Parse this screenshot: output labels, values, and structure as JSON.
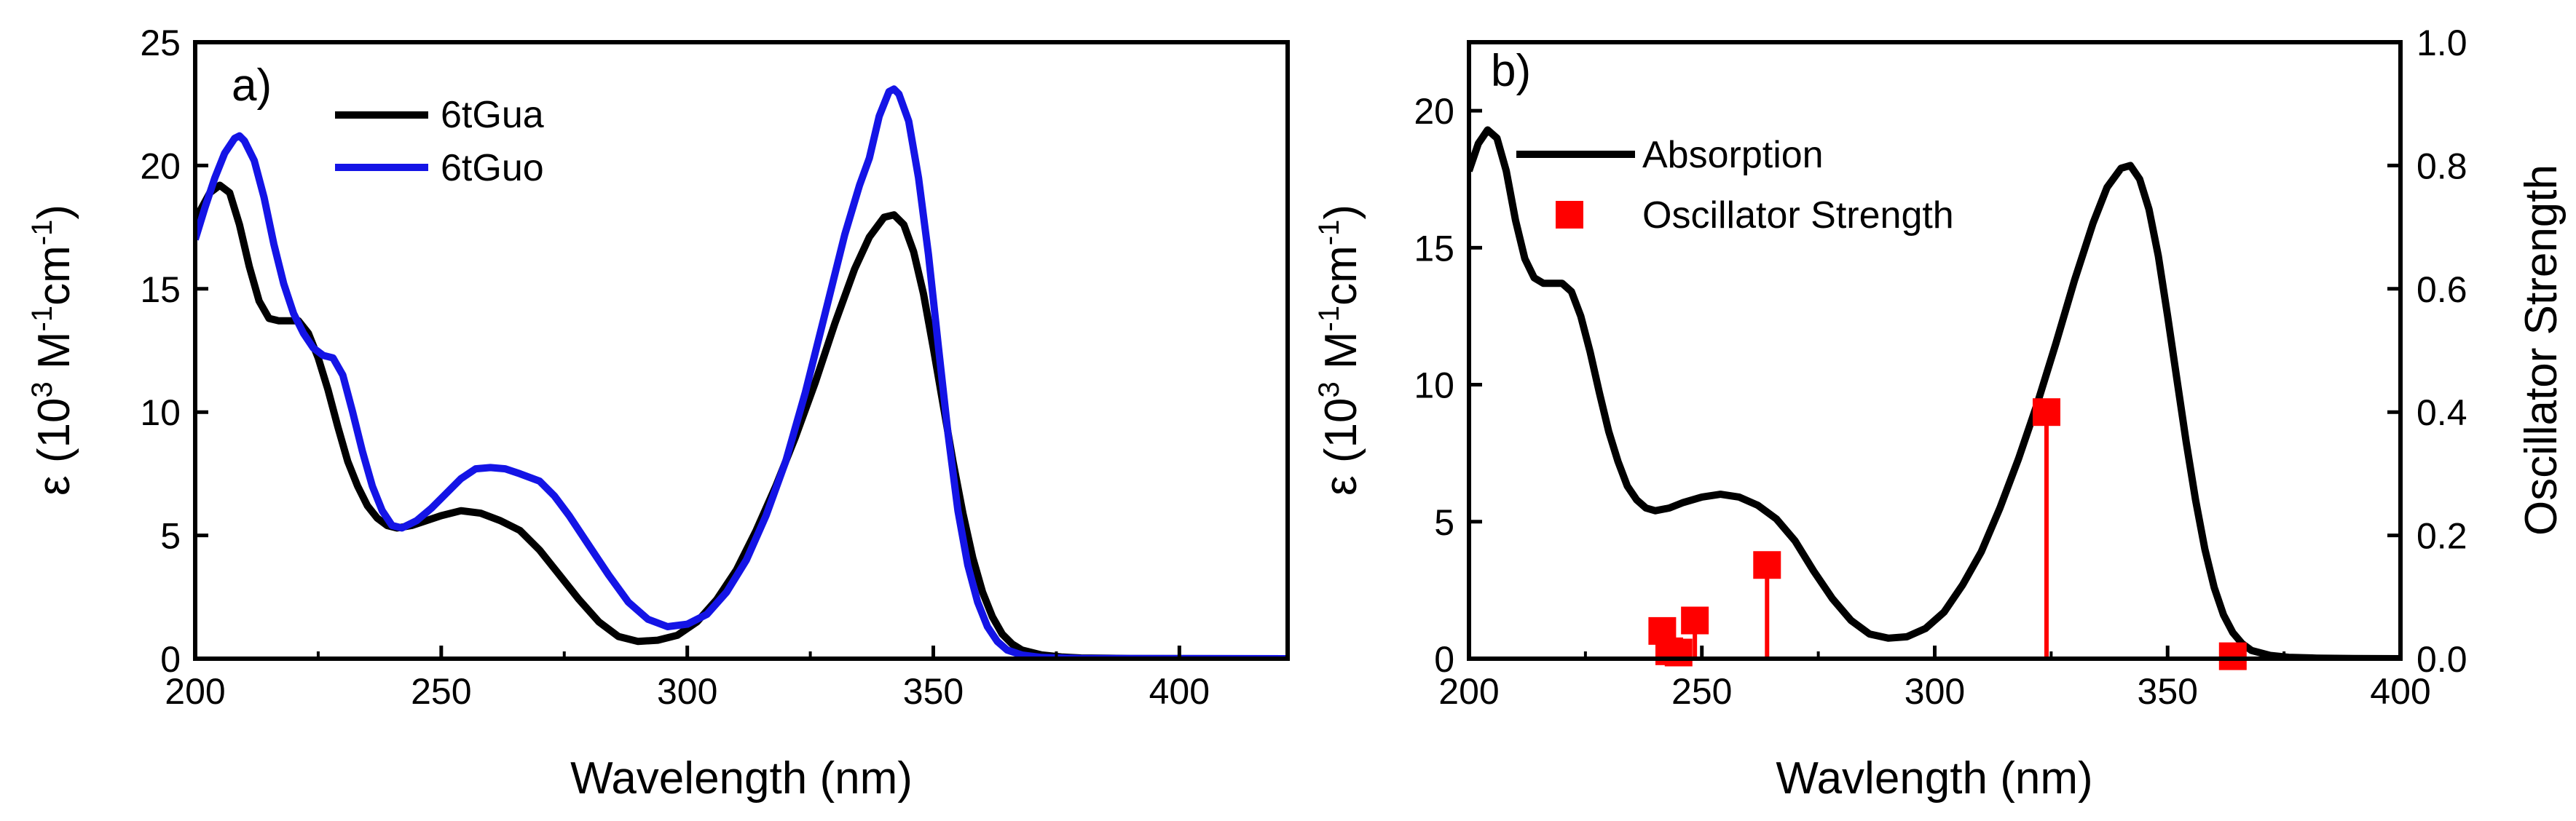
{
  "chart_data": [
    {
      "panel_label": "a)",
      "type": "line",
      "xlabel": "Wavelength (nm)",
      "ylabel": {
        "prefix": "ε (10",
        "exp1": "3",
        "mid1": " M",
        "exp2": "-1",
        "mid2": "cm",
        "exp3": "-1",
        "suffix": ")"
      },
      "xlim": [
        200,
        422
      ],
      "ylim": [
        0,
        25
      ],
      "x_ticks": [
        200,
        250,
        300,
        350,
        400
      ],
      "y_ticks": [
        0,
        5,
        10,
        15,
        20,
        25
      ],
      "series": [
        {
          "name": "6tGua",
          "color": "#000000",
          "points": [
            [
              200,
              17.8
            ],
            [
              203,
              18.9
            ],
            [
              205,
              19.2
            ],
            [
              207,
              18.9
            ],
            [
              209,
              17.6
            ],
            [
              211,
              15.9
            ],
            [
              213,
              14.5
            ],
            [
              215,
              13.8
            ],
            [
              217,
              13.7
            ],
            [
              219,
              13.7
            ],
            [
              221,
              13.7
            ],
            [
              223,
              13.2
            ],
            [
              225,
              12.2
            ],
            [
              227,
              10.9
            ],
            [
              229,
              9.4
            ],
            [
              231,
              8.0
            ],
            [
              233,
              7.0
            ],
            [
              235,
              6.2
            ],
            [
              237,
              5.7
            ],
            [
              239,
              5.4
            ],
            [
              241,
              5.3
            ],
            [
              244,
              5.4
            ],
            [
              247,
              5.6
            ],
            [
              250,
              5.8
            ],
            [
              254,
              6.0
            ],
            [
              258,
              5.9
            ],
            [
              262,
              5.6
            ],
            [
              266,
              5.2
            ],
            [
              270,
              4.4
            ],
            [
              274,
              3.4
            ],
            [
              278,
              2.4
            ],
            [
              282,
              1.5
            ],
            [
              286,
              0.9
            ],
            [
              290,
              0.7
            ],
            [
              294,
              0.75
            ],
            [
              298,
              0.95
            ],
            [
              302,
              1.5
            ],
            [
              306,
              2.4
            ],
            [
              310,
              3.6
            ],
            [
              314,
              5.2
            ],
            [
              318,
              7.0
            ],
            [
              322,
              9.0
            ],
            [
              326,
              11.2
            ],
            [
              330,
              13.6
            ],
            [
              334,
              15.8
            ],
            [
              337,
              17.1
            ],
            [
              340,
              17.9
            ],
            [
              342,
              18.0
            ],
            [
              344,
              17.6
            ],
            [
              346,
              16.5
            ],
            [
              348,
              14.8
            ],
            [
              350,
              12.6
            ],
            [
              352,
              10.3
            ],
            [
              354,
              8.0
            ],
            [
              356,
              5.9
            ],
            [
              358,
              4.1
            ],
            [
              360,
              2.7
            ],
            [
              362,
              1.7
            ],
            [
              364,
              1.0
            ],
            [
              366,
              0.6
            ],
            [
              368,
              0.35
            ],
            [
              372,
              0.15
            ],
            [
              376,
              0.07
            ],
            [
              380,
              0.03
            ],
            [
              390,
              0.01
            ],
            [
              422,
              0.0
            ]
          ]
        },
        {
          "name": "6tGuo",
          "color": "#1414e6",
          "points": [
            [
              200,
              17.0
            ],
            [
              202,
              18.3
            ],
            [
              204,
              19.5
            ],
            [
              206,
              20.5
            ],
            [
              208,
              21.1
            ],
            [
              209,
              21.2
            ],
            [
              210,
              21.0
            ],
            [
              212,
              20.2
            ],
            [
              214,
              18.7
            ],
            [
              216,
              16.8
            ],
            [
              218,
              15.2
            ],
            [
              220,
              14.0
            ],
            [
              222,
              13.2
            ],
            [
              224,
              12.6
            ],
            [
              226,
              12.3
            ],
            [
              228,
              12.2
            ],
            [
              230,
              11.5
            ],
            [
              232,
              10.0
            ],
            [
              234,
              8.4
            ],
            [
              236,
              7.0
            ],
            [
              238,
              6.0
            ],
            [
              240,
              5.4
            ],
            [
              242,
              5.3
            ],
            [
              245,
              5.6
            ],
            [
              248,
              6.1
            ],
            [
              251,
              6.7
            ],
            [
              254,
              7.3
            ],
            [
              257,
              7.7
            ],
            [
              260,
              7.75
            ],
            [
              263,
              7.7
            ],
            [
              266,
              7.5
            ],
            [
              270,
              7.2
            ],
            [
              273,
              6.6
            ],
            [
              276,
              5.8
            ],
            [
              280,
              4.6
            ],
            [
              284,
              3.4
            ],
            [
              288,
              2.3
            ],
            [
              292,
              1.6
            ],
            [
              296,
              1.3
            ],
            [
              300,
              1.4
            ],
            [
              304,
              1.8
            ],
            [
              308,
              2.7
            ],
            [
              312,
              4.0
            ],
            [
              316,
              5.8
            ],
            [
              320,
              8.0
            ],
            [
              324,
              10.8
            ],
            [
              328,
              14.0
            ],
            [
              332,
              17.2
            ],
            [
              335,
              19.2
            ],
            [
              337,
              20.3
            ],
            [
              339,
              22.0
            ],
            [
              341,
              23.0
            ],
            [
              342,
              23.1
            ],
            [
              343,
              22.9
            ],
            [
              345,
              21.8
            ],
            [
              347,
              19.5
            ],
            [
              349,
              16.4
            ],
            [
              351,
              12.7
            ],
            [
              353,
              9.1
            ],
            [
              355,
              6.0
            ],
            [
              357,
              3.8
            ],
            [
              359,
              2.3
            ],
            [
              361,
              1.3
            ],
            [
              363,
              0.7
            ],
            [
              365,
              0.35
            ],
            [
              368,
              0.15
            ],
            [
              372,
              0.05
            ],
            [
              380,
              0.01
            ],
            [
              422,
              0.0
            ]
          ]
        }
      ]
    },
    {
      "panel_label": "b)",
      "type": "line+stem",
      "xlabel": "Wavlength (nm)",
      "ylabel": {
        "prefix": "ε (10",
        "exp1": "3",
        "mid1": " M",
        "exp2": "-1",
        "mid2": "cm",
        "exp3": "-1",
        "suffix": ")"
      },
      "y2label": "Oscillator Strength",
      "xlim": [
        200,
        400
      ],
      "ylim": [
        0,
        22.5
      ],
      "y2lim": [
        0,
        1.0
      ],
      "x_ticks": [
        200,
        250,
        300,
        350,
        400
      ],
      "y_ticks": [
        0,
        5,
        10,
        15,
        20
      ],
      "y2_ticks": [
        "0.0",
        "0.2",
        "0.4",
        "0.6",
        "0.8",
        "1.0"
      ],
      "series": [
        {
          "name": "Absorption",
          "color": "#000000",
          "points": [
            [
              200,
              17.8
            ],
            [
              202,
              18.8
            ],
            [
              204,
              19.3
            ],
            [
              206,
              19.0
            ],
            [
              208,
              17.8
            ],
            [
              210,
              16.0
            ],
            [
              212,
              14.6
            ],
            [
              214,
              13.9
            ],
            [
              216,
              13.7
            ],
            [
              218,
              13.7
            ],
            [
              220,
              13.7
            ],
            [
              222,
              13.4
            ],
            [
              224,
              12.5
            ],
            [
              226,
              11.2
            ],
            [
              228,
              9.7
            ],
            [
              230,
              8.3
            ],
            [
              232,
              7.2
            ],
            [
              234,
              6.3
            ],
            [
              236,
              5.8
            ],
            [
              238,
              5.5
            ],
            [
              240,
              5.4
            ],
            [
              243,
              5.5
            ],
            [
              246,
              5.7
            ],
            [
              250,
              5.9
            ],
            [
              254,
              6.0
            ],
            [
              258,
              5.9
            ],
            [
              262,
              5.6
            ],
            [
              266,
              5.1
            ],
            [
              270,
              4.3
            ],
            [
              274,
              3.2
            ],
            [
              278,
              2.2
            ],
            [
              282,
              1.4
            ],
            [
              286,
              0.9
            ],
            [
              290,
              0.75
            ],
            [
              294,
              0.8
            ],
            [
              298,
              1.1
            ],
            [
              302,
              1.7
            ],
            [
              306,
              2.7
            ],
            [
              310,
              3.9
            ],
            [
              314,
              5.5
            ],
            [
              318,
              7.3
            ],
            [
              322,
              9.3
            ],
            [
              326,
              11.5
            ],
            [
              330,
              13.8
            ],
            [
              334,
              15.9
            ],
            [
              337,
              17.2
            ],
            [
              340,
              17.9
            ],
            [
              342,
              18.0
            ],
            [
              344,
              17.5
            ],
            [
              346,
              16.4
            ],
            [
              348,
              14.7
            ],
            [
              350,
              12.5
            ],
            [
              352,
              10.2
            ],
            [
              354,
              7.9
            ],
            [
              356,
              5.8
            ],
            [
              358,
              4.0
            ],
            [
              360,
              2.6
            ],
            [
              362,
              1.6
            ],
            [
              364,
              0.95
            ],
            [
              366,
              0.55
            ],
            [
              368,
              0.3
            ],
            [
              372,
              0.12
            ],
            [
              376,
              0.05
            ],
            [
              382,
              0.02
            ],
            [
              390,
              0.005
            ],
            [
              400,
              0.0
            ]
          ]
        }
      ],
      "oscillator": {
        "name": "Oscillator Strength",
        "color": "#ff0000",
        "points": [
          [
            241.5,
            0.045
          ],
          [
            243,
            0.012
          ],
          [
            245,
            0.01
          ],
          [
            248.5,
            0.062
          ],
          [
            264,
            0.152
          ],
          [
            324,
            0.4
          ],
          [
            364,
            0.004
          ]
        ]
      }
    }
  ]
}
